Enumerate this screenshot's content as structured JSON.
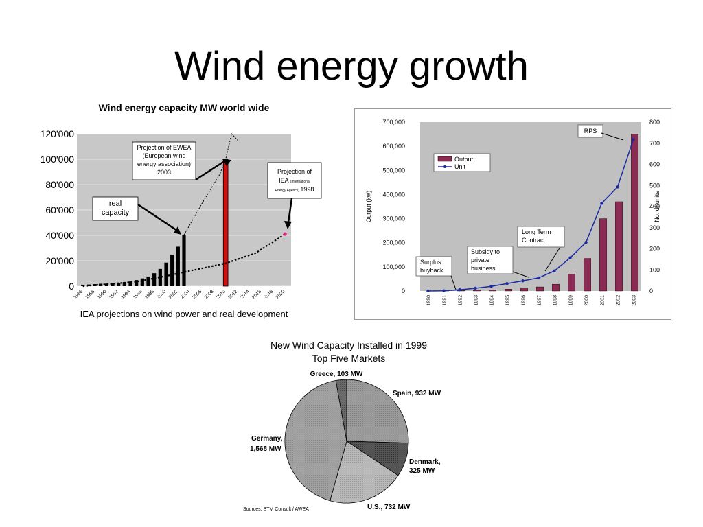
{
  "slide": {
    "title": "Wind energy growth"
  },
  "colors": {
    "bar1": "#000000",
    "redbar": "#cc1111",
    "bar2": "#8b2a52",
    "unitline": "#1a2aa0",
    "plotbg": "#c8c8c8",
    "plotbg2": "#c0c0c0"
  },
  "chart_data": [
    {
      "type": "bar",
      "title": "Wind energy capacity MW world wide",
      "caption": "IEA projections on wind power and real development",
      "x": [
        1986,
        1987,
        1988,
        1989,
        1990,
        1991,
        1992,
        1993,
        1994,
        1995,
        1996,
        1997,
        1998,
        1999,
        2000,
        2001,
        2002,
        2003
      ],
      "values": [
        1000,
        1300,
        1600,
        1900,
        2000,
        2300,
        2700,
        3200,
        3700,
        4800,
        6100,
        7600,
        10200,
        13600,
        18500,
        24900,
        31100,
        40300
      ],
      "ewea_bar": {
        "x": 2010,
        "value": 100000
      },
      "ewea_projection": {
        "x": [
          2003,
          2006,
          2009,
          2010,
          2011,
          2012
        ],
        "y": [
          40300,
          65000,
          88000,
          100000,
          120000,
          115000
        ]
      },
      "iea_projection": {
        "x": [
          1986,
          1990,
          1995,
          2000,
          2005,
          2010,
          2015,
          2020
        ],
        "y": [
          0,
          1500,
          3500,
          8000,
          13000,
          18000,
          26000,
          41000
        ]
      },
      "x_tick_labels": [
        "1986",
        "1988",
        "1990",
        "1992",
        "1994",
        "1996",
        "1998",
        "2000",
        "2002",
        "2004",
        "2006",
        "2008",
        "2010",
        "2012",
        "2014",
        "2016",
        "2018",
        "2020"
      ],
      "y_tick_labels": [
        "0",
        "20'000",
        "40'000",
        "60'000",
        "80'000",
        "100'000",
        "120'000"
      ],
      "xlim": [
        1985,
        2021
      ],
      "ylim": [
        0,
        120000
      ],
      "annotations": [
        {
          "name": "ewea",
          "lines": [
            "Projection of EWEA",
            "(European wind",
            "energy association)",
            "2003"
          ]
        },
        {
          "name": "real",
          "lines": [
            "real",
            "capacity"
          ]
        },
        {
          "name": "iea",
          "lines": [
            "Projection of",
            "IEA",
            "(International",
            "Energy Agency)",
            "1998"
          ]
        }
      ]
    },
    {
      "type": "bar",
      "categories": [
        "1990",
        "1991",
        "1992",
        "1993",
        "1994",
        "1995",
        "1996",
        "1997",
        "1998",
        "1999",
        "2000",
        "2001",
        "2002",
        "2003"
      ],
      "series": [
        {
          "name": "Output",
          "values": [
            0,
            1000,
            3000,
            5000,
            5000,
            8000,
            12000,
            17000,
            28000,
            70000,
            135000,
            300000,
            370000,
            650000
          ]
        },
        {
          "name": "Unit",
          "values": [
            0,
            1,
            6,
            13,
            22,
            35,
            48,
            62,
            95,
            157,
            230,
            416,
            493,
            718
          ]
        }
      ],
      "ylabel": "Output (kw)",
      "y2label": "No. of units",
      "ylim": [
        0,
        700000
      ],
      "y2lim": [
        0,
        800
      ],
      "y_tick_labels": [
        "0",
        "100,000",
        "200,000",
        "300,000",
        "400,000",
        "500,000",
        "600,000",
        "700,000"
      ],
      "y2_tick_labels": [
        "0",
        "100",
        "200",
        "300",
        "400",
        "500",
        "600",
        "700",
        "800"
      ],
      "legend": "top-left",
      "annotations": [
        "RPS",
        "Long Term Contract",
        "Subsidy to private business",
        "Surplus buyback"
      ]
    },
    {
      "type": "pie",
      "title": "New Wind Capacity Installed in 1999",
      "subtitle": "Top Five Markets",
      "slices": [
        {
          "label": "Spain, 932 MW",
          "value": 932
        },
        {
          "label": "Denmark, 325 MW",
          "value": 325
        },
        {
          "label": "U.S., 732 MW",
          "value": 732
        },
        {
          "label": "Germany, 1,568 MW",
          "value": 1568
        },
        {
          "label": "Greece, 103 MW",
          "value": 103
        }
      ],
      "source": "Sources: BTM Consult / AWEA"
    }
  ]
}
